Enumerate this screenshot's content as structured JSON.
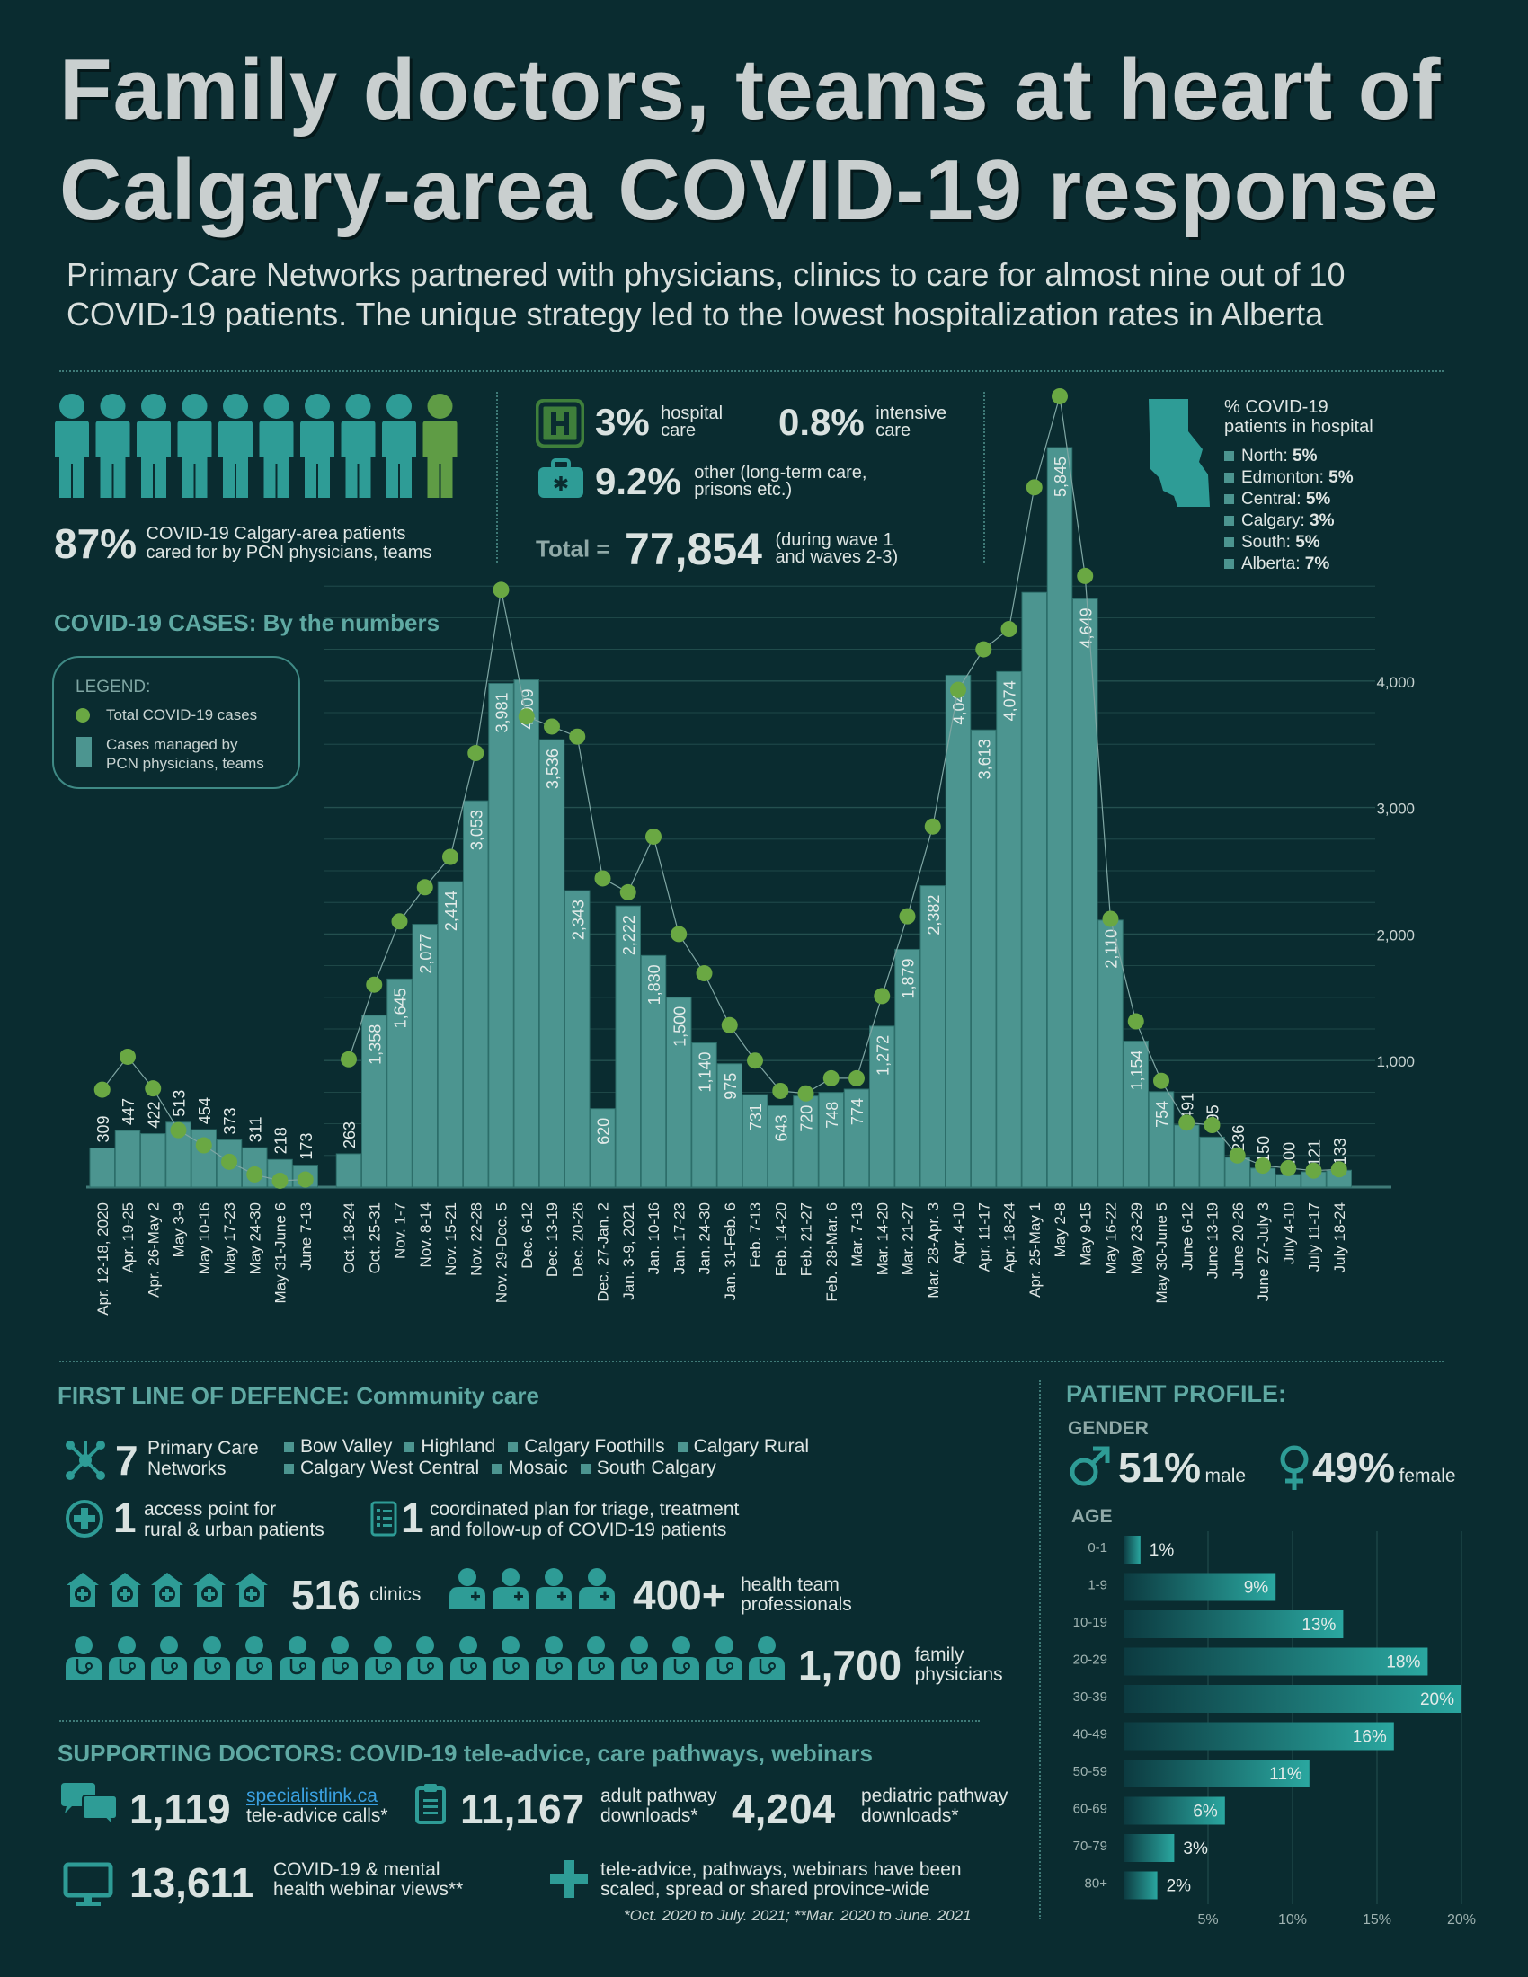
{
  "header": {
    "title_line1": "Family doctors, teams at heart of",
    "title_line2": "Calgary-area COVID-19 response",
    "subtitle_line1": "Primary Care Networks partnered with physicians, clinics to care for almost nine out of 10",
    "subtitle_line2": "COVID-19 patients. The unique strategy led to the lowest hospitalization rates in Alberta"
  },
  "summary": {
    "pcn_pct": "87%",
    "pcn_text_1": "COVID-19 Calgary-area patients",
    "pcn_text_2": "cared for by PCN physicians, teams",
    "hospital_pct": "3%",
    "hospital_text_1": "hospital",
    "hospital_text_2": "care",
    "icu_pct": "0.8%",
    "icu_text_1": "intensive",
    "icu_text_2": "care",
    "other_pct": "9.2%",
    "other_text_1": "other (long-term care,",
    "other_text_2": "prisons etc.)",
    "total_label": "Total =",
    "total_value": "77,854",
    "total_note_1": "(during wave 1",
    "total_note_2": "and waves 2-3)"
  },
  "hospital_regions": {
    "title_1": "% COVID-19",
    "title_2": "patients in hospital",
    "items": [
      {
        "name": "North: ",
        "value": "5%"
      },
      {
        "name": "Edmonton: ",
        "value": "5%"
      },
      {
        "name": "Central: ",
        "value": "5%"
      },
      {
        "name": "Calgary: ",
        "value": "3%"
      },
      {
        "name": "South: ",
        "value": "5%"
      },
      {
        "name": "Alberta: ",
        "value": "7%"
      }
    ]
  },
  "cases_section": {
    "title": "COVID-19 CASES: By the numbers",
    "legend_title": "LEGEND:",
    "legend_dot": "Total COVID-19 cases",
    "legend_bar_1": "Cases managed by",
    "legend_bar_2": "PCN physicians, teams"
  },
  "chart_data": [
    {
      "type": "bar",
      "title": "COVID-19 CASES: By the numbers",
      "xlabel": "",
      "ylabel": "",
      "ylim": [
        0,
        5845
      ],
      "yticks": [
        "1,000",
        "2,000",
        "3,000",
        "4,000"
      ],
      "ytick_values": [
        1000,
        2000,
        3000,
        4000
      ],
      "grid": true,
      "categories": [
        "Apr. 12-18, 2020",
        "Apr. 19-25",
        "Apr. 26-May 2",
        "May 3-9",
        "May 10-16",
        "May 17-23",
        "May 24-30",
        "May 31-June 6",
        "June 7-13",
        "Oct. 18-24",
        "Oct. 25-31",
        "Nov. 1-7",
        "Nov. 8-14",
        "Nov. 15-21",
        "Nov. 22-28",
        "Nov. 29-Dec. 5",
        "Dec. 6-12",
        "Dec. 13-19",
        "Dec. 20-26",
        "Dec. 27-Jan. 2",
        "Jan. 3-9, 2021",
        "Jan. 10-16",
        "Jan. 17-23",
        "Jan. 24-30",
        "Jan. 31-Feb. 6",
        "Feb. 7-13",
        "Feb. 14-20",
        "Feb. 21-27",
        "Feb. 28-Mar. 6",
        "Mar. 7-13",
        "Mar. 14-20",
        "Mar. 21-27",
        "Mar. 28-Apr. 3",
        "Apr. 4-10",
        "Apr. 11-17",
        "Apr. 18-24",
        "Apr. 25-May 1",
        "May 2-8",
        "May 9-15",
        "May 16-22",
        "May 23-29",
        "May 30-June 5",
        "June 6-12",
        "June 13-19",
        "June 20-26",
        "June 27-July 3",
        "July 4-10",
        "July 11-17",
        "July 18-24"
      ],
      "series": [
        {
          "name": "Cases managed by PCN physicians, teams",
          "values": [
            309,
            447,
            422,
            513,
            454,
            373,
            311,
            218,
            173,
            263,
            1358,
            1645,
            2077,
            2414,
            3053,
            3981,
            4009,
            3536,
            2343,
            620,
            2222,
            1830,
            1500,
            1140,
            975,
            731,
            643,
            720,
            748,
            774,
            1272,
            1879,
            2382,
            4045,
            3613,
            4074,
            4700,
            5845,
            4649,
            2110,
            1154,
            754,
            491,
            395,
            236,
            150,
            100,
            121,
            133
          ],
          "labels": [
            "309",
            "447",
            "422",
            "513",
            "454",
            "373",
            "311",
            "218",
            "173",
            "263",
            "1,358",
            "1,645",
            "2,077",
            "2,414",
            "3,053",
            "3,981",
            "4,009",
            "3,536",
            "2,343",
            "620",
            "2,222",
            "1,830",
            "1,500",
            "1,140",
            "975",
            "731",
            "643",
            "720",
            "748",
            "774",
            "1,272",
            "1,879",
            "2,382",
            "4,045",
            "3,613",
            "4,074",
            "",
            "5,845",
            "4,649",
            "2,110",
            "1,154",
            "754",
            "491",
            "395",
            "236",
            "150",
            "100",
            "121",
            "133"
          ]
        },
        {
          "name": "Total COVID-19 cases",
          "values": [
            770,
            1030,
            780,
            450,
            330,
            200,
            100,
            50,
            60,
            1010,
            1600,
            2100,
            2370,
            2610,
            3430,
            4720,
            3720,
            3640,
            3560,
            2440,
            2330,
            2770,
            2000,
            1690,
            1280,
            1000,
            760,
            740,
            860,
            860,
            1510,
            2140,
            2850,
            3930,
            4250,
            4410,
            5530,
            6250,
            4830,
            2120,
            1310,
            840,
            510,
            490,
            250,
            170,
            150,
            130,
            140
          ]
        }
      ]
    },
    {
      "type": "bar",
      "title": "AGE",
      "xlabel": "",
      "ylabel": "",
      "xlim": [
        0,
        20
      ],
      "xticks": [
        "5%",
        "10%",
        "15%",
        "20%"
      ],
      "xtick_values": [
        5,
        10,
        15,
        20
      ],
      "categories": [
        "0-1",
        "1-9",
        "10-19",
        "20-29",
        "30-39",
        "40-49",
        "50-59",
        "60-69",
        "70-79",
        "80+"
      ],
      "values": [
        1,
        9,
        13,
        18,
        20,
        16,
        11,
        6,
        3,
        2
      ],
      "labels": [
        "1%",
        "9%",
        "13%",
        "18%",
        "20%",
        "16%",
        "11%",
        "6%",
        "3%",
        "2%"
      ]
    }
  ],
  "community": {
    "title_bold": "FIRST LINE OF DEFENCE:",
    "title_rest": " Community care",
    "pcn_num": "7",
    "pcn_label_1": "Primary Care",
    "pcn_label_2": "Networks",
    "networks": [
      "Bow Valley",
      "Highland",
      "Calgary Foothills",
      "Calgary Rural",
      "Calgary West Central",
      "Mosaic",
      "South Calgary"
    ],
    "access_num": "1",
    "access_1": "access point for",
    "access_2": "rural & urban patients",
    "plan_num": "1",
    "plan_1": "coordinated plan for triage, treatment",
    "plan_2": "and follow-up of COVID-19 patients",
    "clinics_num": "516",
    "clinics_label": "clinics",
    "team_num": "400+",
    "team_1": "health team",
    "team_2": "professionals",
    "docs_num": "1,700",
    "docs_1": "family",
    "docs_2": "physicians"
  },
  "supporting": {
    "title_bold": "SUPPORTING DOCTORS:",
    "title_rest": " COVID-19 tele-advice, care pathways, webinars",
    "calls_num": "1,119",
    "calls_link": "specialistlink.ca",
    "calls_label": "tele-advice calls*",
    "adult_num": "11,167",
    "adult_1": "adult pathway",
    "adult_2": "downloads*",
    "peds_num": "4,204",
    "peds_1": "pediatric pathway",
    "peds_2": "downloads*",
    "webinar_num": "13,611",
    "webinar_1": "COVID-19 & mental",
    "webinar_2": "health webinar views**",
    "scaled_1": "tele-advice, pathways, webinars have been",
    "scaled_2": "scaled, spread or shared province-wide",
    "footnote": "*Oct. 2020 to July. 2021; **Mar. 2020 to June. 2021"
  },
  "profile": {
    "title": "PATIENT PROFILE:",
    "gender_label": "GENDER",
    "male_pct": "51%",
    "male_label": "male",
    "female_pct": "49%",
    "female_label": "female",
    "age_label": "AGE"
  },
  "colors": {
    "background": "#0a2c30",
    "bar": "#4c9590",
    "dot": "#6aa843",
    "accent": "#2e9c96",
    "grid": "#24504f"
  }
}
